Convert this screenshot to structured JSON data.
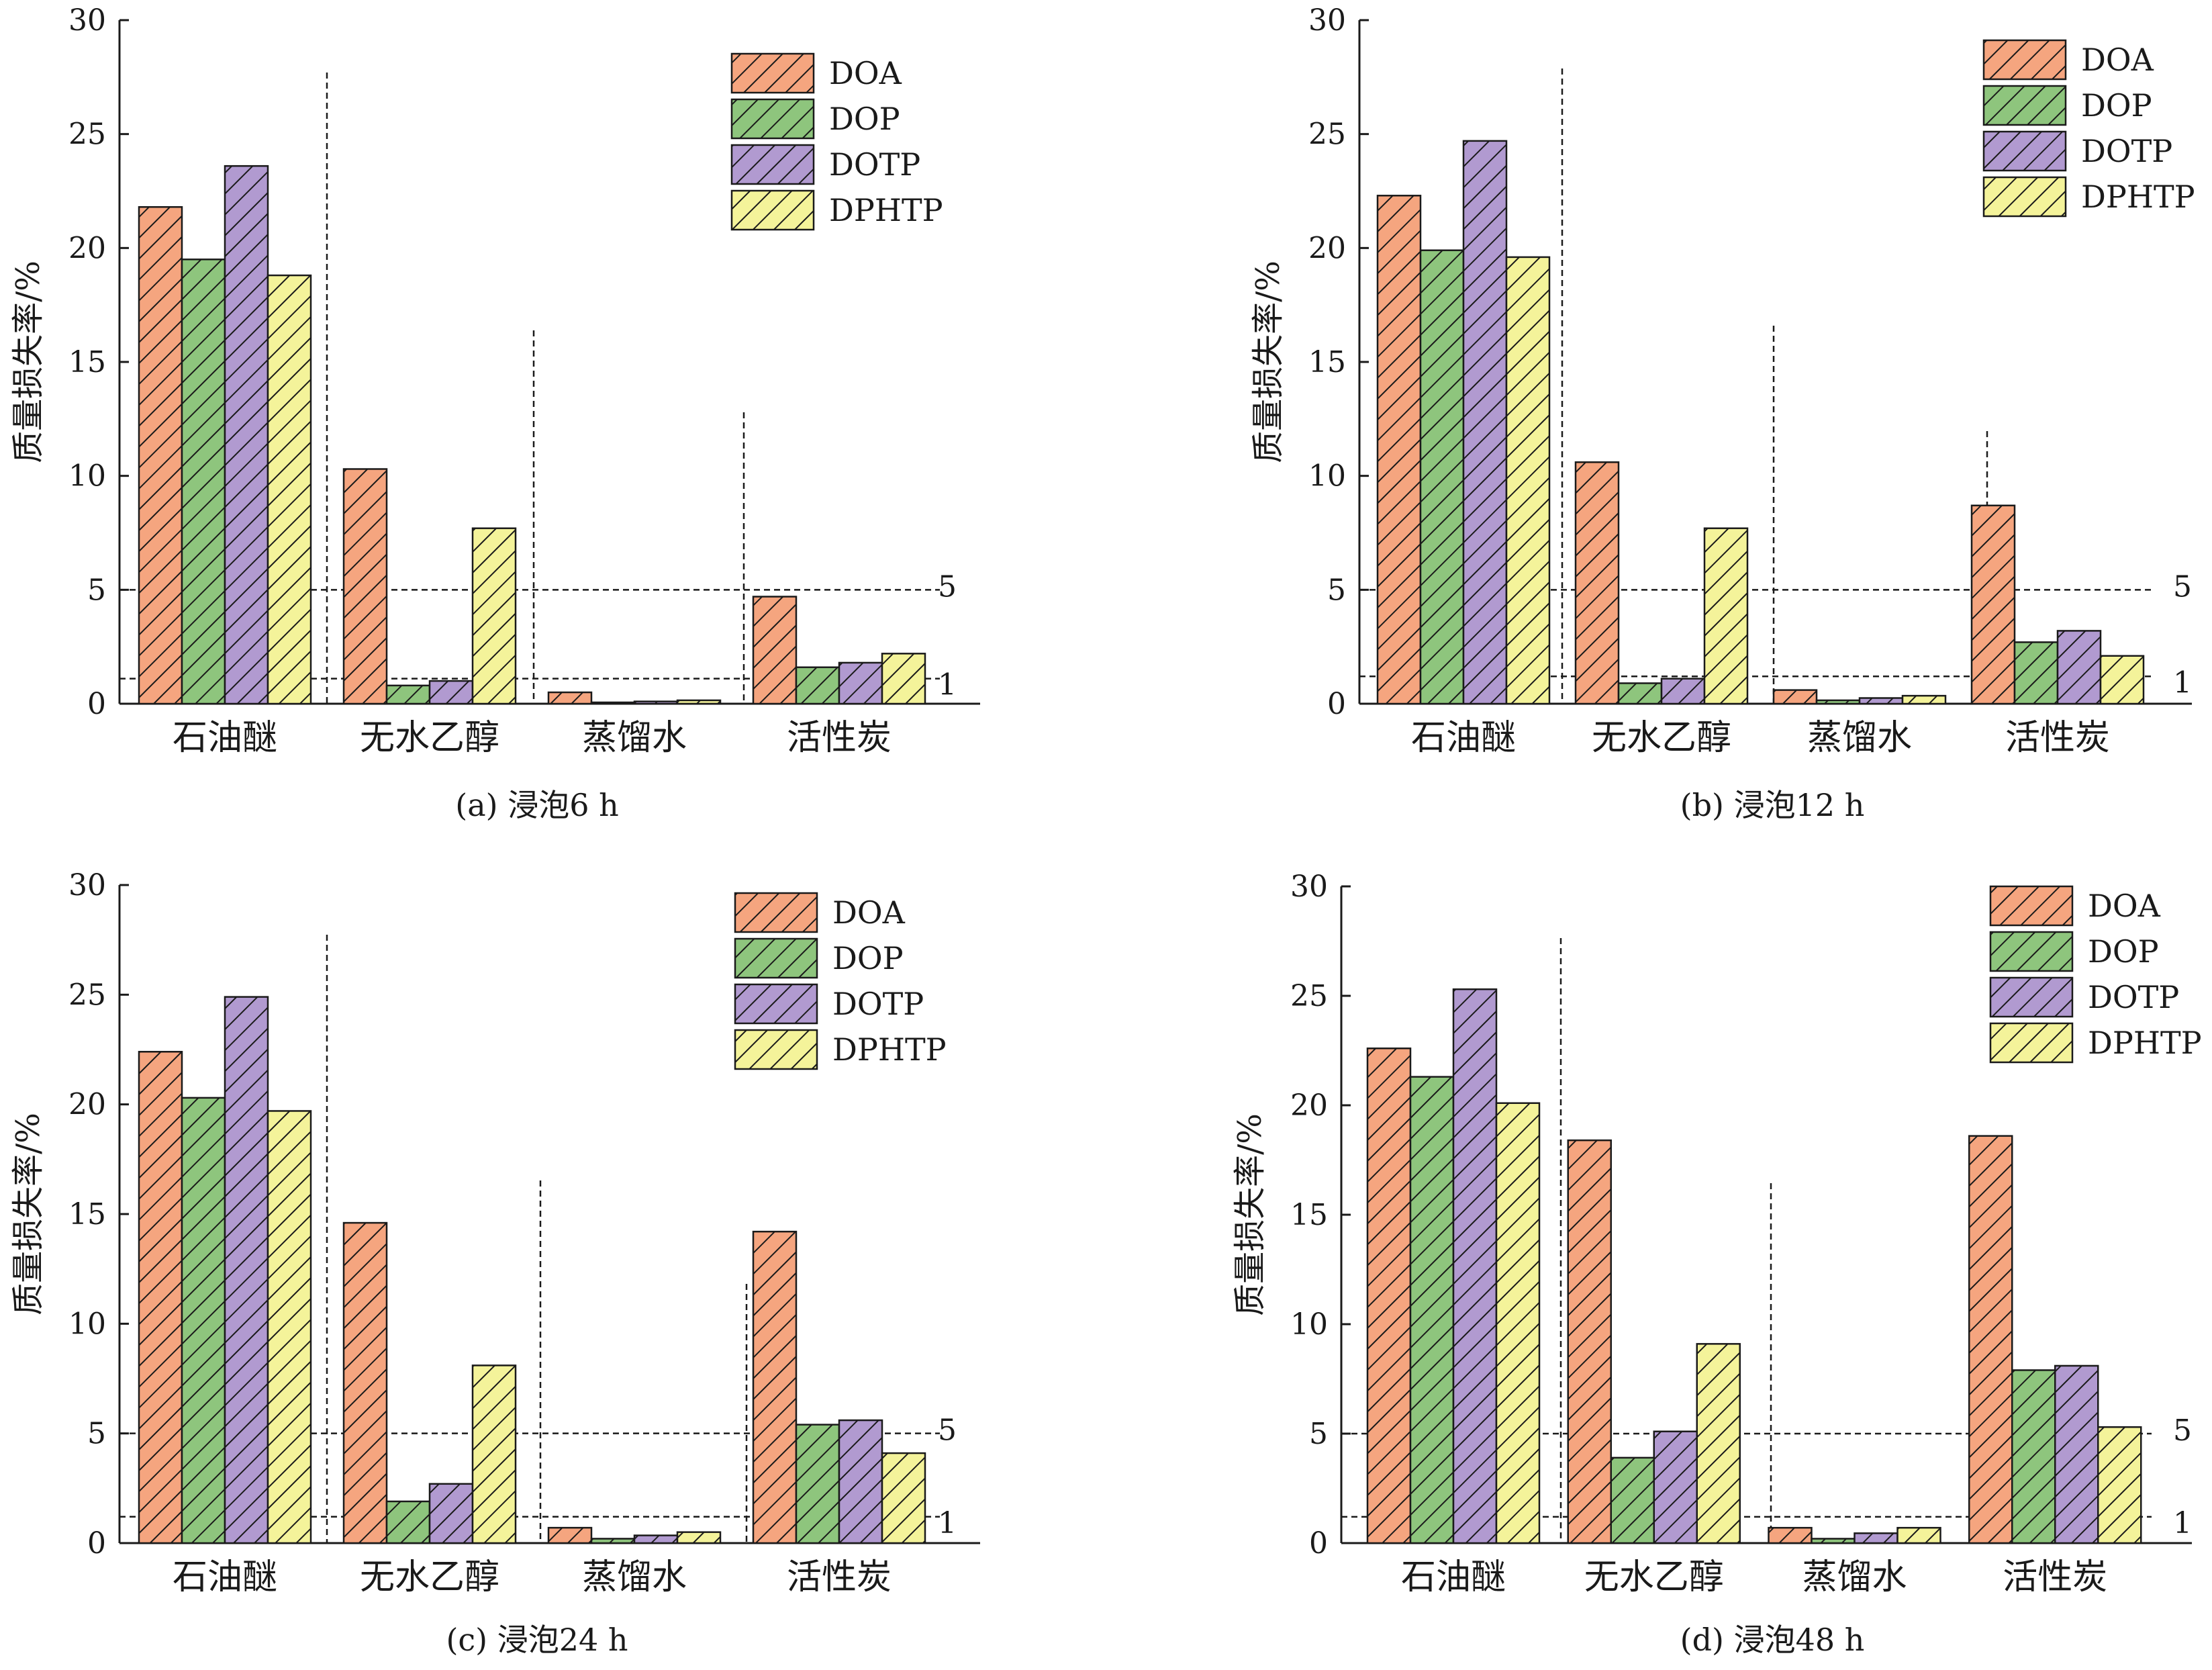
{
  "colors": {
    "DOA": "#f5a57f",
    "DOP": "#8ec57d",
    "DOTP": "#b19ad0",
    "DPHTP": "#f4f39a"
  },
  "chart_data": [
    {
      "type": "bar",
      "caption": "(a) 浸泡6 h",
      "ylabel": "质量损失率/%",
      "categories": [
        "石油醚",
        "无水乙醇",
        "蒸馏水",
        "活性炭"
      ],
      "ylim": [
        0,
        30
      ],
      "yticks": [
        "0",
        "5",
        "10",
        "15",
        "20",
        "25",
        "30"
      ],
      "legend_position": "top-right",
      "ref_lines": [
        {
          "value": 5,
          "label": "5"
        },
        {
          "value": 1.1,
          "label": "1"
        }
      ],
      "series": [
        {
          "name": "DOA",
          "values": [
            21.8,
            10.3,
            0.5,
            4.7
          ]
        },
        {
          "name": "DOP",
          "values": [
            19.5,
            0.8,
            0.05,
            1.6
          ]
        },
        {
          "name": "DOTP",
          "values": [
            23.6,
            1.0,
            0.1,
            1.8
          ]
        },
        {
          "name": "DPHTP",
          "values": [
            18.8,
            7.7,
            0.15,
            2.2
          ]
        }
      ]
    },
    {
      "type": "bar",
      "caption": "(b) 浸泡12 h",
      "ylabel": "质量损失率/%",
      "categories": [
        "石油醚",
        "无水乙醇",
        "蒸馏水",
        "活性炭"
      ],
      "ylim": [
        0,
        30
      ],
      "yticks": [
        "0",
        "5",
        "10",
        "15",
        "20",
        "25",
        "30"
      ],
      "legend_position": "top-right",
      "ref_lines": [
        {
          "value": 5,
          "label": "5"
        },
        {
          "value": 1.2,
          "label": "1"
        }
      ],
      "series": [
        {
          "name": "DOA",
          "values": [
            22.3,
            10.6,
            0.6,
            8.7
          ]
        },
        {
          "name": "DOP",
          "values": [
            19.9,
            0.9,
            0.15,
            2.7
          ]
        },
        {
          "name": "DOTP",
          "values": [
            24.7,
            1.1,
            0.25,
            3.2
          ]
        },
        {
          "name": "DPHTP",
          "values": [
            19.6,
            7.7,
            0.35,
            2.1
          ]
        }
      ]
    },
    {
      "type": "bar",
      "caption": "(c) 浸泡24 h",
      "ylabel": "质量损失率/%",
      "categories": [
        "石油醚",
        "无水乙醇",
        "蒸馏水",
        "活性炭"
      ],
      "ylim": [
        0,
        30
      ],
      "yticks": [
        "0",
        "5",
        "10",
        "15",
        "20",
        "25",
        "30"
      ],
      "legend_position": "top-right",
      "ref_lines": [
        {
          "value": 5,
          "label": "5"
        },
        {
          "value": 1.2,
          "label": "1"
        }
      ],
      "series": [
        {
          "name": "DOA",
          "values": [
            22.4,
            14.6,
            0.7,
            14.2
          ]
        },
        {
          "name": "DOP",
          "values": [
            20.3,
            1.9,
            0.2,
            5.4
          ]
        },
        {
          "name": "DOTP",
          "values": [
            24.9,
            2.7,
            0.35,
            5.6
          ]
        },
        {
          "name": "DPHTP",
          "values": [
            19.7,
            8.1,
            0.5,
            4.1
          ]
        }
      ]
    },
    {
      "type": "bar",
      "caption": "(d) 浸泡48 h",
      "ylabel": "质量损失率/%",
      "categories": [
        "石油醚",
        "无水乙醇",
        "蒸馏水",
        "活性炭"
      ],
      "ylim": [
        0,
        30
      ],
      "yticks": [
        "0",
        "5",
        "10",
        "15",
        "20",
        "25",
        "30"
      ],
      "legend_position": "top-right",
      "ref_lines": [
        {
          "value": 5,
          "label": "5"
        },
        {
          "value": 1.2,
          "label": "1"
        }
      ],
      "series": [
        {
          "name": "DOA",
          "values": [
            22.6,
            18.4,
            0.7,
            18.6
          ]
        },
        {
          "name": "DOP",
          "values": [
            21.3,
            3.9,
            0.2,
            7.9
          ]
        },
        {
          "name": "DOTP",
          "values": [
            25.3,
            5.1,
            0.45,
            8.1
          ]
        },
        {
          "name": "DPHTP",
          "values": [
            20.1,
            9.1,
            0.7,
            5.3
          ]
        }
      ]
    }
  ]
}
